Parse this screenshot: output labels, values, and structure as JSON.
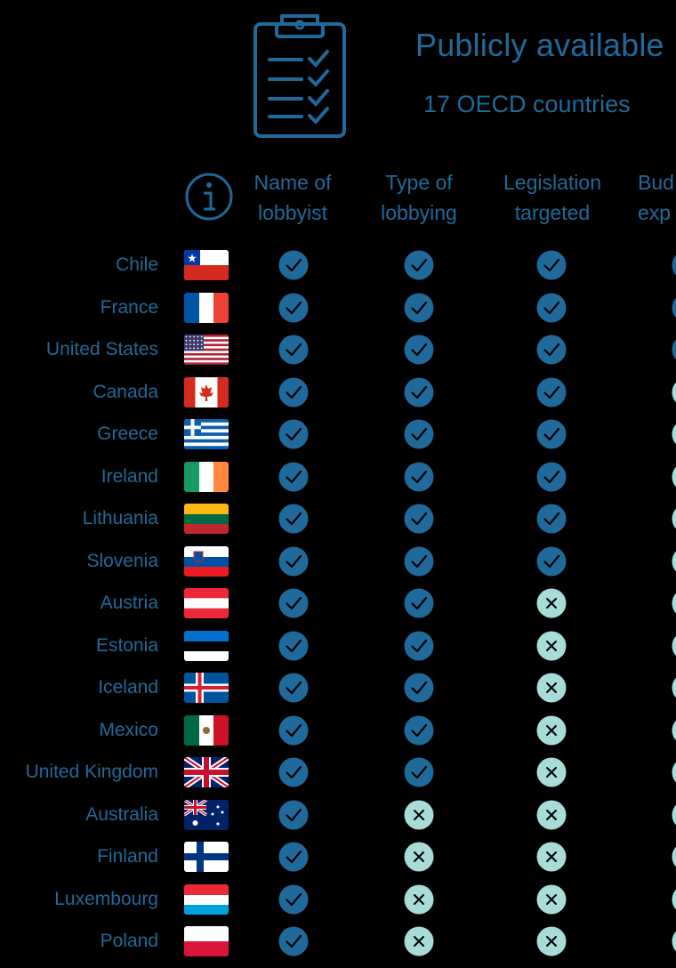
{
  "header": {
    "title": "Publicly available",
    "subtitle": "17 OECD countries"
  },
  "icons": [
    "clipboard-checklist-icon",
    "info-icon",
    "check-icon",
    "cross-icon"
  ],
  "colors": {
    "text": "#1f6a9a",
    "check_fill": "#1f6a9a",
    "cross_fill": "#a7dcd9",
    "background": "#000000"
  },
  "columns": [
    {
      "line1": "Name of",
      "line2": "lobbyist"
    },
    {
      "line1": "Type of",
      "line2": "lobbying"
    },
    {
      "line1": "Legislation",
      "line2": "targeted"
    },
    {
      "line1": "Bud",
      "line2": "exp"
    }
  ],
  "rows": [
    {
      "country": "Chile",
      "flag": "chile",
      "values": [
        true,
        true,
        true,
        true
      ]
    },
    {
      "country": "France",
      "flag": "france",
      "values": [
        true,
        true,
        true,
        true
      ]
    },
    {
      "country": "United States",
      "flag": "usa",
      "values": [
        true,
        true,
        true,
        true
      ]
    },
    {
      "country": "Canada",
      "flag": "canada",
      "values": [
        true,
        true,
        true,
        false
      ]
    },
    {
      "country": "Greece",
      "flag": "greece",
      "values": [
        true,
        true,
        true,
        false
      ]
    },
    {
      "country": "Ireland",
      "flag": "ireland",
      "values": [
        true,
        true,
        true,
        false
      ]
    },
    {
      "country": "Lithuania",
      "flag": "lithuania",
      "values": [
        true,
        true,
        true,
        false
      ]
    },
    {
      "country": "Slovenia",
      "flag": "slovenia",
      "values": [
        true,
        true,
        true,
        false
      ]
    },
    {
      "country": "Austria",
      "flag": "austria",
      "values": [
        true,
        true,
        false,
        false
      ]
    },
    {
      "country": "Estonia",
      "flag": "estonia",
      "values": [
        true,
        true,
        false,
        false
      ]
    },
    {
      "country": "Iceland",
      "flag": "iceland",
      "values": [
        true,
        true,
        false,
        false
      ]
    },
    {
      "country": "Mexico",
      "flag": "mexico",
      "values": [
        true,
        true,
        false,
        false
      ]
    },
    {
      "country": "United Kingdom",
      "flag": "uk",
      "values": [
        true,
        true,
        false,
        false
      ]
    },
    {
      "country": "Australia",
      "flag": "australia",
      "values": [
        true,
        false,
        false,
        false
      ]
    },
    {
      "country": "Finland",
      "flag": "finland",
      "values": [
        true,
        false,
        false,
        false
      ]
    },
    {
      "country": "Luxembourg",
      "flag": "luxembourg",
      "values": [
        true,
        false,
        false,
        false
      ]
    },
    {
      "country": "Poland",
      "flag": "poland",
      "values": [
        true,
        false,
        false,
        false
      ]
    }
  ]
}
